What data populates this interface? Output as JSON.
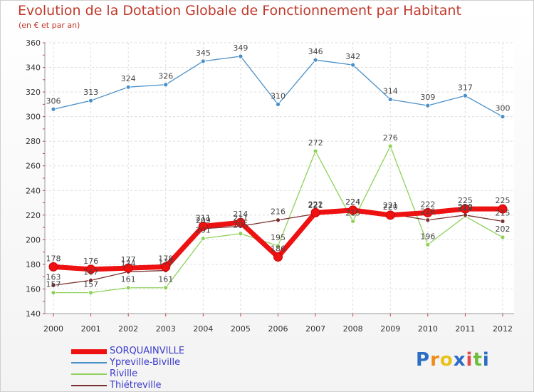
{
  "header": {
    "title": "Evolution de la Dotation Globale de Fonctionnement par Habitant",
    "subtitle": "(en € et par an)"
  },
  "brand": {
    "logo_text": "Proxiti"
  },
  "chart_data": {
    "type": "line",
    "categories": [
      "2000",
      "2001",
      "2002",
      "2003",
      "2004",
      "2005",
      "2006",
      "2007",
      "2008",
      "2009",
      "2010",
      "2011",
      "2012"
    ],
    "ylim": [
      140,
      360
    ],
    "yticks": [
      140,
      160,
      180,
      200,
      220,
      240,
      260,
      280,
      300,
      320,
      340,
      360
    ],
    "grid": true,
    "legend_position": "bottom-left",
    "series": [
      {
        "name": "Ypreville-Biville",
        "color": "#4a90c8",
        "values": [
          306,
          313,
          324,
          326,
          345,
          349,
          310,
          346,
          342,
          314,
          309,
          317,
          300
        ]
      },
      {
        "name": "Riville",
        "color": "#8fd15a",
        "values": [
          157,
          157,
          161,
          161,
          201,
          205,
          195,
          272,
          215,
          276,
          196,
          219,
          202
        ]
      },
      {
        "name": "Thiétreville",
        "color": "#7a2f2f",
        "values": [
          163,
          167,
          174,
          175,
          209,
          211,
          216,
          221,
          224,
          221,
          216,
          220,
          215
        ]
      },
      {
        "name": "SORQUAINVILLE",
        "color": "#ee1111",
        "values": [
          178,
          176,
          177,
          178,
          211,
          214,
          186,
          222,
          224,
          220,
          222,
          225,
          225
        ]
      }
    ]
  }
}
